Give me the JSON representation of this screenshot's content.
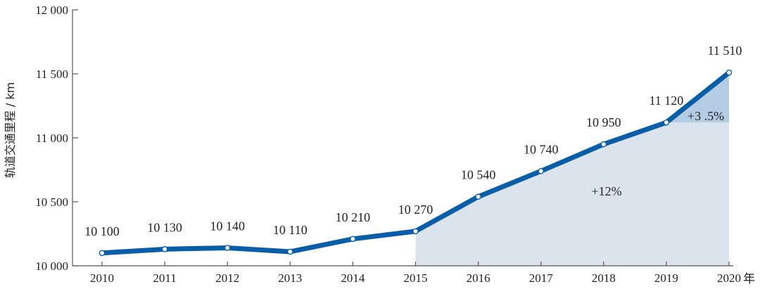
{
  "chart_data": {
    "type": "line",
    "title": "",
    "xlabel": "",
    "ylabel": "轨道交通里程 / km",
    "x_unit": "年",
    "x": [
      "2010",
      "2011",
      "2012",
      "2013",
      "2014",
      "2015",
      "2016",
      "2017",
      "2018",
      "2019",
      "2020"
    ],
    "values": [
      10100,
      10130,
      10140,
      10110,
      10210,
      10270,
      10540,
      10740,
      10950,
      11120,
      11510
    ],
    "data_labels": [
      "10 100",
      "10 130",
      "10 140",
      "10 110",
      "10 210",
      "10 270",
      "10 540",
      "10 740",
      "10 950",
      "11 120",
      "11 510"
    ],
    "ylim": [
      10000,
      12000
    ],
    "yticks": [
      10000,
      10500,
      11000,
      11500,
      12000
    ],
    "ytick_labels": [
      "10 000",
      "10 500",
      "11 000",
      "11 500",
      "12 000"
    ],
    "grid": false,
    "annotations": [
      {
        "text": "+12%",
        "region": "2015-2020 base growth"
      },
      {
        "text": "+3 .5%",
        "region": "2019-2020 growth"
      }
    ],
    "colors": {
      "line": "#0a5ea8",
      "fill_light": "#dbe4ec",
      "fill_dark": "#b5cde4",
      "axis": "#555555"
    }
  }
}
